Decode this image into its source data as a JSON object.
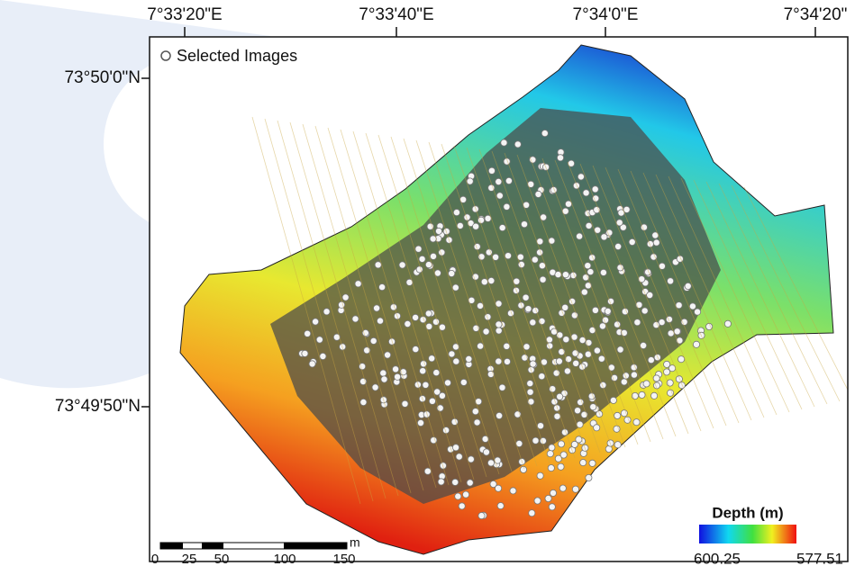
{
  "map": {
    "x_ticks": [
      "7°33'20\"E",
      "7°33'40\"E",
      "7°34'0\"E",
      "7°34'20\""
    ],
    "y_ticks": [
      "73°50'0\"N",
      "73°49'50\"N"
    ],
    "legend": {
      "label": "Selected Images"
    },
    "colorbar": {
      "title": "Depth (m)",
      "min_label": "600.25",
      "max_label": "577.51"
    },
    "scale_bar": {
      "labels": [
        "0",
        "25",
        "50",
        "100",
        "150"
      ],
      "unit": "m"
    }
  }
}
